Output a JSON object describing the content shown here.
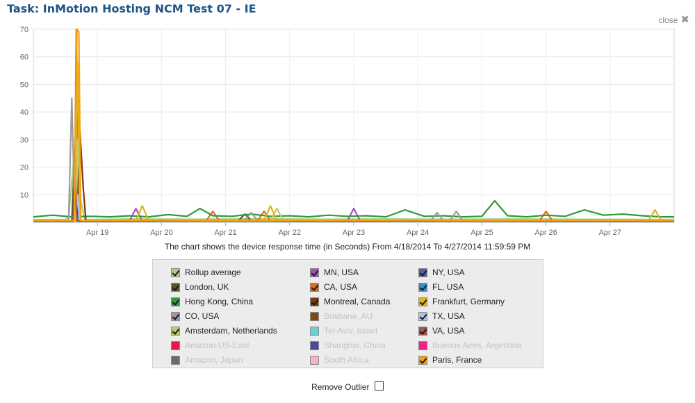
{
  "title": "Task: InMotion Hosting NCM Test 07 - IE",
  "close_label": "close",
  "caption": "The chart shows the device response time (in Seconds) From 4/18/2014 To 4/27/2014 11:59:59 PM",
  "remove_outlier_label": "Remove Outlier",
  "remove_outlier_checked": false,
  "chart_data": {
    "type": "line",
    "title": "",
    "xlabel": "",
    "ylabel": "",
    "x_unit": "days since Apr 18 2014",
    "xlim": [
      0,
      10
    ],
    "ylim": [
      0,
      70
    ],
    "y_ticks": [
      10,
      20,
      30,
      40,
      50,
      60,
      70
    ],
    "x_ticks": [
      {
        "label": "Apr 19",
        "x": 1
      },
      {
        "label": "Apr 20",
        "x": 2
      },
      {
        "label": "Apr 21",
        "x": 3
      },
      {
        "label": "Apr 22",
        "x": 4
      },
      {
        "label": "Apr 23",
        "x": 5
      },
      {
        "label": "Apr 24",
        "x": 6
      },
      {
        "label": "Apr 25",
        "x": 7
      },
      {
        "label": "Apr 26",
        "x": 8
      },
      {
        "label": "Apr 27",
        "x": 9
      }
    ],
    "grid": true,
    "legend_position": "bottom",
    "series": [
      {
        "name": "Rollup average",
        "color": "#a9cc7e",
        "visible": true,
        "x": [
          0,
          0.5,
          0.55,
          0.62,
          0.68,
          0.74,
          0.8,
          1.5,
          2.5,
          3.5,
          4.5,
          5.5,
          6.5,
          7.5,
          8.5,
          10
        ],
        "y": [
          1,
          1,
          2,
          20,
          36,
          8,
          1,
          1.2,
          1.1,
          1.3,
          1.1,
          1.2,
          1.1,
          1.2,
          1.1,
          1
        ]
      },
      {
        "name": "MN, USA",
        "color": "#a64ec0",
        "visible": true,
        "x": [
          0,
          0.65,
          0.68,
          0.71,
          1.5,
          1.6,
          1.7,
          3,
          4.9,
          5,
          5.1,
          6,
          7,
          8,
          9,
          10
        ],
        "y": [
          0.5,
          0.5,
          5,
          0.5,
          0.5,
          5,
          0.5,
          0.6,
          0.6,
          5,
          0.6,
          0.5,
          0.6,
          0.5,
          0.6,
          0.5
        ]
      },
      {
        "name": "NY, USA",
        "color": "#5a5aa8",
        "visible": true,
        "x": [
          0,
          0.67,
          0.7,
          0.73,
          2,
          4,
          6,
          8,
          10
        ],
        "y": [
          0.5,
          0.5,
          12,
          0.5,
          0.6,
          0.5,
          0.6,
          0.5,
          0.5
        ]
      },
      {
        "name": "London, UK",
        "color": "#555533",
        "visible": true,
        "x": [
          0,
          0.6,
          0.64,
          0.68,
          2,
          3.2,
          3.3,
          3.4,
          5,
          7,
          9,
          10
        ],
        "y": [
          0.5,
          0.5,
          22,
          0.5,
          0.6,
          0.6,
          3,
          0.6,
          0.5,
          0.6,
          0.5,
          0.5
        ]
      },
      {
        "name": "CA, USA",
        "color": "#e06a15",
        "visible": true,
        "x": [
          0,
          0.64,
          0.67,
          0.72,
          1.5,
          2.7,
          2.8,
          2.9,
          3.5,
          3.6,
          3.7,
          5,
          7.9,
          8,
          8.1,
          9,
          10
        ],
        "y": [
          0.5,
          0.5,
          70,
          0.5,
          0.6,
          0.6,
          4,
          0.6,
          0.6,
          4,
          0.6,
          0.6,
          0.6,
          4,
          0.6,
          0.6,
          0.5
        ]
      },
      {
        "name": "FL, USA",
        "color": "#3d8dcc",
        "visible": true,
        "x": [
          0,
          0.63,
          0.66,
          0.69,
          2,
          4,
          6,
          8,
          10
        ],
        "y": [
          0.4,
          0.4,
          9,
          0.4,
          0.5,
          0.4,
          0.5,
          0.4,
          0.4
        ]
      },
      {
        "name": "Hong Kong, China",
        "color": "#2e9a3a",
        "visible": true,
        "x": [
          0,
          0.3,
          0.6,
          0.9,
          1.2,
          1.5,
          1.8,
          2.1,
          2.4,
          2.6,
          2.8,
          3.1,
          3.4,
          3.7,
          4,
          4.3,
          4.6,
          4.9,
          5.2,
          5.5,
          5.8,
          6.1,
          6.4,
          6.7,
          7,
          7.2,
          7.4,
          7.7,
          8,
          8.3,
          8.6,
          8.9,
          9.2,
          9.5,
          9.8,
          10
        ],
        "y": [
          2,
          2.6,
          2,
          2.2,
          2,
          2.4,
          2,
          2.8,
          2.2,
          5,
          2.4,
          2.2,
          3,
          2.2,
          2.4,
          2,
          2.6,
          2.2,
          2.4,
          2,
          4.5,
          2.2,
          2.4,
          2,
          2.2,
          7.8,
          2.4,
          2,
          2.6,
          2.2,
          4.5,
          2.6,
          3,
          2.4,
          2,
          2
        ]
      },
      {
        "name": "Montreal, Canada",
        "color": "#7a3a0e",
        "visible": true,
        "x": [
          0,
          0.68,
          0.72,
          0.78,
          0.82,
          2,
          4,
          6,
          8,
          10
        ],
        "y": [
          0.6,
          0.6,
          36,
          12,
          0.6,
          0.6,
          0.7,
          0.6,
          0.7,
          0.6
        ]
      },
      {
        "name": "Frankfurt, Germany",
        "color": "#e0b416",
        "visible": true,
        "x": [
          0,
          0.65,
          0.69,
          0.73,
          1.6,
          1.7,
          1.8,
          3.6,
          3.7,
          3.8,
          6,
          9.6,
          9.7,
          9.8,
          10
        ],
        "y": [
          0.5,
          0.5,
          58,
          0.5,
          0.6,
          6,
          0.6,
          0.6,
          6,
          0.6,
          0.6,
          0.6,
          4.5,
          0.6,
          0.5
        ]
      },
      {
        "name": "CO, USA",
        "color": "#9a9a9a",
        "visible": true,
        "x": [
          0,
          0.55,
          0.6,
          0.65,
          2,
          3.3,
          3.4,
          3.5,
          6.2,
          6.3,
          6.4,
          6.5,
          6.6,
          6.7,
          8,
          10
        ],
        "y": [
          0.6,
          0.6,
          45,
          0.6,
          0.6,
          0.6,
          3.5,
          0.6,
          0.6,
          3.5,
          0.6,
          0.6,
          4,
          0.6,
          0.6,
          0.6
        ]
      },
      {
        "name": "Brisbane, AU",
        "color": "#7a4a10",
        "visible": false,
        "x": [],
        "y": []
      },
      {
        "name": "TX, USA",
        "color": "#a8c4e6",
        "visible": true,
        "x": [
          0,
          0.66,
          0.69,
          0.72,
          3,
          6,
          9,
          10
        ],
        "y": [
          0.5,
          0.5,
          10,
          0.5,
          0.5,
          0.6,
          0.5,
          0.5
        ]
      },
      {
        "name": "Amsterdam, Netherlands",
        "color": "#c7c56a",
        "visible": true,
        "x": [
          0,
          0.66,
          0.7,
          0.74,
          2,
          3.7,
          3.8,
          3.9,
          5,
          7,
          9,
          10
        ],
        "y": [
          0.6,
          0.6,
          30,
          0.6,
          0.7,
          0.7,
          5,
          0.7,
          0.6,
          0.7,
          0.6,
          0.6
        ]
      },
      {
        "name": "Tel-Aviv, Israel",
        "color": "#6ad0d6",
        "visible": false,
        "x": [],
        "y": []
      },
      {
        "name": "VA, USA",
        "color": "#9c5a4e",
        "visible": true,
        "x": [
          0,
          0.62,
          0.65,
          0.68,
          3,
          5,
          7,
          9,
          10
        ],
        "y": [
          0.5,
          0.5,
          15,
          0.5,
          0.6,
          0.5,
          0.6,
          0.5,
          0.5
        ]
      },
      {
        "name": "Amazon-US-East",
        "color": "#e01a4a",
        "visible": false,
        "x": [],
        "y": []
      },
      {
        "name": "Shanghai, China",
        "color": "#4a4a9a",
        "visible": false,
        "x": [],
        "y": []
      },
      {
        "name": "Buenos Aires, Argentina",
        "color": "#f0208a",
        "visible": false,
        "x": [],
        "y": []
      },
      {
        "name": "Amazon, Japan",
        "color": "#6a6a6a",
        "visible": false,
        "x": [],
        "y": []
      },
      {
        "name": "South Africa",
        "color": "#f2b4be",
        "visible": false,
        "x": [],
        "y": []
      },
      {
        "name": "Paris, France",
        "color": "#f5a010",
        "visible": true,
        "x": [
          0,
          0.64,
          0.68,
          0.71,
          0.74,
          2,
          4,
          6,
          8,
          10
        ],
        "y": [
          0.7,
          0.7,
          70,
          69,
          0.7,
          0.8,
          0.7,
          0.8,
          0.7,
          0.7
        ]
      }
    ]
  }
}
